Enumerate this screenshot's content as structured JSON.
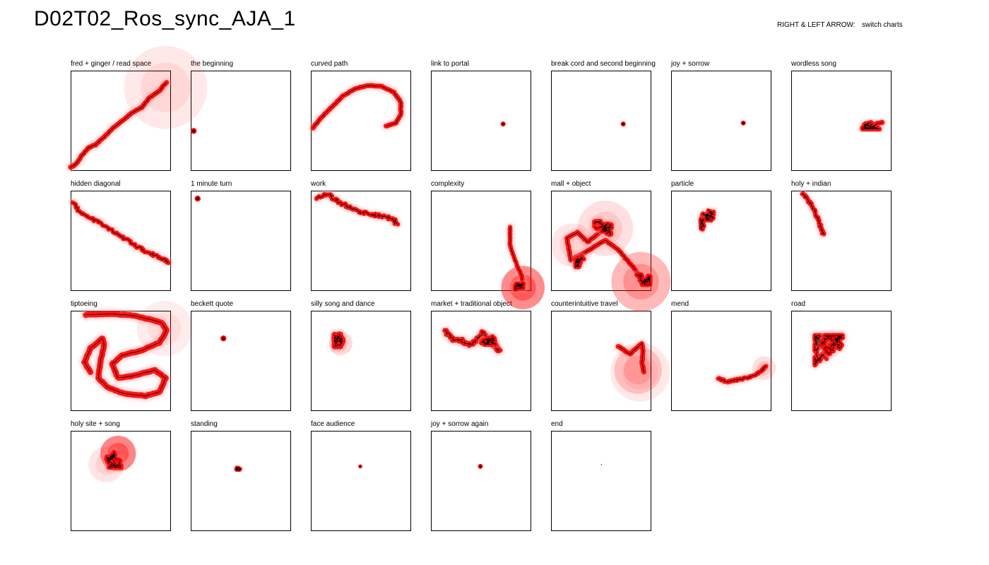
{
  "title": "D02T02_Ros_sync_AJA_1",
  "hint": {
    "key_label": "RIGHT & LEFT ARROW:",
    "action_label": "switch charts"
  },
  "colors": {
    "trace": "#000000",
    "glow": "#ff0000",
    "halo": "#ff9999",
    "frame": "#000000"
  },
  "chart_data": {
    "type": "scatter",
    "xlim": [
      0,
      1
    ],
    "ylim": [
      0,
      1
    ],
    "grid": false,
    "panels": [
      {
        "label": "fred + ginger / read space",
        "kind": "path",
        "glow": 0.05,
        "path": [
          [
            0.0,
            0.02
          ],
          [
            0.05,
            0.05
          ],
          [
            0.12,
            0.15
          ],
          [
            0.18,
            0.22
          ],
          [
            0.25,
            0.25
          ],
          [
            0.34,
            0.33
          ],
          [
            0.43,
            0.42
          ],
          [
            0.53,
            0.5
          ],
          [
            0.63,
            0.58
          ],
          [
            0.72,
            0.63
          ],
          [
            0.8,
            0.73
          ],
          [
            0.89,
            0.79
          ],
          [
            0.97,
            0.88
          ]
        ],
        "halos": [
          {
            "x": 0.96,
            "y": 0.83,
            "r": 0.42,
            "a": 0.18
          }
        ]
      },
      {
        "label": "the beginning",
        "kind": "dot",
        "x": 0.03,
        "y": 0.39,
        "r": 0.03
      },
      {
        "label": "curved path",
        "kind": "path",
        "glow": 0.05,
        "path": [
          [
            0.02,
            0.42
          ],
          [
            0.1,
            0.52
          ],
          [
            0.2,
            0.62
          ],
          [
            0.32,
            0.74
          ],
          [
            0.45,
            0.82
          ],
          [
            0.58,
            0.85
          ],
          [
            0.72,
            0.84
          ],
          [
            0.84,
            0.78
          ],
          [
            0.91,
            0.68
          ],
          [
            0.91,
            0.56
          ],
          [
            0.86,
            0.47
          ],
          [
            0.76,
            0.44
          ]
        ]
      },
      {
        "label": "link to portal",
        "kind": "dot",
        "x": 0.73,
        "y": 0.46,
        "r": 0.025
      },
      {
        "label": "break cord and second beginning",
        "kind": "dot",
        "x": 0.73,
        "y": 0.46,
        "r": 0.025
      },
      {
        "label": "joy + sorrow",
        "kind": "dot",
        "x": 0.73,
        "y": 0.47,
        "r": 0.025
      },
      {
        "label": "wordless song",
        "kind": "blob",
        "glow": 0.05,
        "blobs": [
          {
            "x": 0.82,
            "y": 0.48,
            "w": 0.2,
            "h": 0.14,
            "seed": 7
          }
        ]
      },
      {
        "label": "hidden diagonal",
        "kind": "path",
        "glow": 0.045,
        "jitter": 0.025,
        "path": [
          [
            0.03,
            0.88
          ],
          [
            0.1,
            0.78
          ],
          [
            0.2,
            0.72
          ],
          [
            0.32,
            0.66
          ],
          [
            0.45,
            0.58
          ],
          [
            0.58,
            0.5
          ],
          [
            0.7,
            0.42
          ],
          [
            0.82,
            0.36
          ],
          [
            0.95,
            0.3
          ],
          [
            0.99,
            0.27
          ]
        ]
      },
      {
        "label": "1 minute turn",
        "kind": "dot",
        "x": 0.07,
        "y": 0.92,
        "r": 0.03
      },
      {
        "label": "work",
        "kind": "path",
        "glow": 0.045,
        "jitter": 0.03,
        "path": [
          [
            0.05,
            0.93
          ],
          [
            0.18,
            0.96
          ],
          [
            0.26,
            0.9
          ],
          [
            0.34,
            0.86
          ],
          [
            0.42,
            0.82
          ],
          [
            0.52,
            0.78
          ],
          [
            0.62,
            0.76
          ],
          [
            0.72,
            0.74
          ],
          [
            0.82,
            0.72
          ],
          [
            0.88,
            0.66
          ]
        ]
      },
      {
        "label": "complexity",
        "kind": "path",
        "glow": 0.045,
        "path": [
          [
            0.8,
            0.63
          ],
          [
            0.8,
            0.55
          ],
          [
            0.8,
            0.46
          ],
          [
            0.82,
            0.38
          ],
          [
            0.85,
            0.3
          ],
          [
            0.88,
            0.22
          ],
          [
            0.92,
            0.14
          ],
          [
            0.93,
            0.02
          ]
        ],
        "blobs": [
          {
            "x": 0.91,
            "y": 0.03,
            "w": 0.12,
            "h": 0.06,
            "seed": 3
          }
        ],
        "halos": [
          {
            "x": 0.93,
            "y": 0.02,
            "r": 0.22,
            "a": 0.9
          }
        ]
      },
      {
        "label": "mall + object",
        "kind": "path",
        "glow": 0.05,
        "path": [
          [
            0.55,
            0.62
          ],
          [
            0.47,
            0.56
          ],
          [
            0.37,
            0.48
          ],
          [
            0.27,
            0.58
          ],
          [
            0.16,
            0.52
          ],
          [
            0.2,
            0.3
          ],
          [
            0.35,
            0.38
          ],
          [
            0.55,
            0.5
          ],
          [
            0.68,
            0.4
          ],
          [
            0.82,
            0.24
          ],
          [
            0.93,
            0.1
          ]
        ],
        "blobs": [
          {
            "x": 0.54,
            "y": 0.62,
            "w": 0.2,
            "h": 0.14,
            "seed": 11
          },
          {
            "x": 0.93,
            "y": 0.1,
            "w": 0.14,
            "h": 0.1,
            "seed": 5
          },
          {
            "x": 0.3,
            "y": 0.28,
            "w": 0.1,
            "h": 0.1,
            "seed": 2
          }
        ],
        "halos": [
          {
            "x": 0.55,
            "y": 0.62,
            "r": 0.28,
            "a": 0.25
          },
          {
            "x": 0.91,
            "y": 0.08,
            "r": 0.3,
            "a": 0.55
          },
          {
            "x": 0.22,
            "y": 0.45,
            "r": 0.22,
            "a": 0.2
          }
        ]
      },
      {
        "label": "particle",
        "kind": "blob",
        "glow": 0.045,
        "blobs": [
          {
            "x": 0.34,
            "y": 0.76,
            "w": 0.18,
            "h": 0.12,
            "seed": 9
          },
          {
            "x": 0.33,
            "y": 0.66,
            "w": 0.06,
            "h": 0.1,
            "seed": 4
          }
        ]
      },
      {
        "label": "holy + indian",
        "kind": "path",
        "glow": 0.045,
        "jitter": 0.02,
        "path": [
          [
            0.12,
            0.97
          ],
          [
            0.17,
            0.9
          ],
          [
            0.22,
            0.84
          ],
          [
            0.25,
            0.76
          ],
          [
            0.28,
            0.7
          ],
          [
            0.3,
            0.62
          ],
          [
            0.33,
            0.56
          ]
        ]
      },
      {
        "label": "tiptoeing",
        "kind": "path",
        "glow": 0.06,
        "path": [
          [
            0.15,
            0.96
          ],
          [
            0.4,
            0.97
          ],
          [
            0.65,
            0.95
          ],
          [
            0.92,
            0.88
          ],
          [
            0.97,
            0.8
          ],
          [
            0.9,
            0.68
          ],
          [
            0.72,
            0.6
          ],
          [
            0.52,
            0.55
          ],
          [
            0.42,
            0.46
          ],
          [
            0.48,
            0.32
          ],
          [
            0.62,
            0.34
          ],
          [
            0.85,
            0.4
          ],
          [
            0.96,
            0.32
          ],
          [
            0.9,
            0.18
          ],
          [
            0.76,
            0.14
          ],
          [
            0.55,
            0.16
          ],
          [
            0.38,
            0.22
          ],
          [
            0.28,
            0.32
          ],
          [
            0.3,
            0.48
          ],
          [
            0.34,
            0.66
          ],
          [
            0.32,
            0.72
          ],
          [
            0.2,
            0.62
          ],
          [
            0.14,
            0.48
          ],
          [
            0.2,
            0.38
          ]
        ],
        "halos": [
          {
            "x": 0.95,
            "y": 0.82,
            "r": 0.28,
            "a": 0.15
          }
        ]
      },
      {
        "label": "beckett quote",
        "kind": "dot",
        "x": 0.33,
        "y": 0.72,
        "r": 0.03
      },
      {
        "label": "silly song and dance",
        "kind": "blob",
        "glow": 0.06,
        "blobs": [
          {
            "x": 0.3,
            "y": 0.7,
            "w": 0.12,
            "h": 0.12,
            "seed": 13
          }
        ],
        "halos": [
          {
            "x": 0.3,
            "y": 0.67,
            "r": 0.12,
            "a": 0.3
          }
        ]
      },
      {
        "label": "market + traditional object",
        "kind": "path",
        "glow": 0.05,
        "jitter": 0.035,
        "path": [
          [
            0.15,
            0.8
          ],
          [
            0.22,
            0.72
          ],
          [
            0.3,
            0.7
          ],
          [
            0.38,
            0.66
          ],
          [
            0.46,
            0.7
          ],
          [
            0.52,
            0.78
          ],
          [
            0.58,
            0.72
          ],
          [
            0.64,
            0.66
          ],
          [
            0.7,
            0.6
          ]
        ],
        "blobs": [
          {
            "x": 0.58,
            "y": 0.72,
            "w": 0.14,
            "h": 0.12,
            "seed": 17
          }
        ]
      },
      {
        "label": "counterintuitive travel",
        "kind": "path",
        "glow": 0.05,
        "path": [
          [
            0.68,
            0.64
          ],
          [
            0.74,
            0.6
          ],
          [
            0.8,
            0.56
          ],
          [
            0.86,
            0.62
          ],
          [
            0.92,
            0.67
          ],
          [
            0.93,
            0.58
          ],
          [
            0.92,
            0.48
          ],
          [
            0.94,
            0.38
          ]
        ],
        "halos": [
          {
            "x": 0.88,
            "y": 0.4,
            "r": 0.24,
            "a": 0.35
          },
          {
            "x": 0.9,
            "y": 0.38,
            "r": 0.3,
            "a": 0.18
          }
        ]
      },
      {
        "label": "mend",
        "kind": "path",
        "glow": 0.045,
        "jitter": 0.015,
        "path": [
          [
            0.48,
            0.32
          ],
          [
            0.56,
            0.28
          ],
          [
            0.66,
            0.3
          ],
          [
            0.76,
            0.32
          ],
          [
            0.84,
            0.34
          ],
          [
            0.92,
            0.4
          ],
          [
            0.96,
            0.44
          ]
        ],
        "halos": [
          {
            "x": 0.94,
            "y": 0.42,
            "r": 0.12,
            "a": 0.25
          }
        ]
      },
      {
        "label": "road",
        "kind": "blob",
        "glow": 0.05,
        "blobs": [
          {
            "x": 0.38,
            "y": 0.55,
            "w": 0.28,
            "h": 0.4,
            "seed": 21
          },
          {
            "x": 0.42,
            "y": 0.62,
            "w": 0.22,
            "h": 0.26,
            "seed": 8
          }
        ]
      },
      {
        "label": "holy site + song",
        "kind": "blob",
        "glow": 0.05,
        "blobs": [
          {
            "x": 0.42,
            "y": 0.72,
            "w": 0.18,
            "h": 0.18,
            "seed": 19
          }
        ],
        "halos": [
          {
            "x": 0.48,
            "y": 0.77,
            "r": 0.18,
            "a": 0.95
          },
          {
            "x": 0.36,
            "y": 0.66,
            "r": 0.18,
            "a": 0.2
          }
        ]
      },
      {
        "label": "standing",
        "kind": "blob",
        "glow": 0.03,
        "blobs": [
          {
            "x": 0.48,
            "y": 0.62,
            "w": 0.05,
            "h": 0.04,
            "seed": 6
          }
        ]
      },
      {
        "label": "face audience",
        "kind": "dot",
        "x": 0.5,
        "y": 0.64,
        "r": 0.02
      },
      {
        "label": "joy + sorrow again",
        "kind": "dot",
        "x": 0.5,
        "y": 0.64,
        "r": 0.025
      },
      {
        "label": "end",
        "kind": "point",
        "x": 0.51,
        "y": 0.66
      }
    ]
  }
}
